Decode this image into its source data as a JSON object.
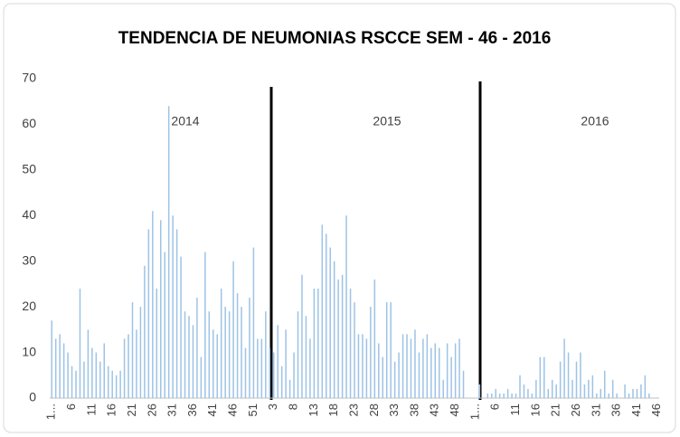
{
  "chart_data": {
    "type": "bar",
    "title": "TENDENCIA DE NEUMONIAS  RSCCE SEM - 46 - 2016",
    "annotations": [
      "2014",
      "2015",
      "2016"
    ],
    "categories": [
      "1...",
      null,
      null,
      null,
      null,
      "6",
      null,
      null,
      null,
      null,
      "11",
      null,
      null,
      null,
      null,
      "16",
      null,
      null,
      null,
      null,
      "21",
      null,
      null,
      null,
      null,
      "26",
      null,
      null,
      null,
      null,
      "31",
      null,
      null,
      null,
      null,
      "36",
      null,
      null,
      null,
      null,
      "41",
      null,
      null,
      null,
      null,
      "46",
      null,
      null,
      null,
      null,
      "51",
      null,
      null,
      null,
      null,
      "3",
      null,
      null,
      null,
      null,
      "8",
      null,
      null,
      null,
      null,
      "13",
      null,
      null,
      null,
      null,
      "18",
      null,
      null,
      null,
      null,
      "23",
      null,
      null,
      null,
      null,
      "28",
      null,
      null,
      null,
      null,
      "33",
      null,
      null,
      null,
      null,
      "38",
      null,
      null,
      null,
      null,
      "43",
      null,
      null,
      null,
      null,
      "48",
      null,
      null,
      null,
      null,
      "1...",
      null,
      null,
      null,
      null,
      "6",
      null,
      null,
      null,
      null,
      "11",
      null,
      null,
      null,
      null,
      "16",
      null,
      null,
      null,
      null,
      "21",
      null,
      null,
      null,
      null,
      "26",
      null,
      null,
      null,
      null,
      "31",
      null,
      null,
      null,
      null,
      "36",
      null,
      null,
      null,
      null,
      "41",
      null,
      null,
      null,
      null,
      "46"
    ],
    "values": [
      17,
      13,
      14,
      12,
      10,
      7,
      6,
      24,
      8,
      15,
      11,
      10,
      8,
      12,
      7,
      6,
      5,
      6,
      13,
      14,
      21,
      15,
      20,
      29,
      37,
      41,
      24,
      39,
      32,
      64,
      40,
      37,
      31,
      19,
      18,
      16,
      22,
      9,
      32,
      19,
      15,
      14,
      24,
      20,
      19,
      30,
      23,
      20,
      11,
      22,
      33,
      13,
      13,
      19,
      11,
      10,
      16,
      7,
      15,
      4,
      10,
      19,
      27,
      18,
      13,
      24,
      24,
      38,
      36,
      33,
      30,
      26,
      27,
      40,
      24,
      21,
      14,
      14,
      13,
      20,
      26,
      12,
      9,
      21,
      21,
      8,
      10,
      14,
      14,
      13,
      15,
      10,
      13,
      14,
      11,
      12,
      11,
      4,
      12,
      9,
      12,
      13,
      6,
      0,
      0,
      0,
      3,
      0,
      1,
      1,
      2,
      1,
      1,
      2,
      1,
      1,
      5,
      3,
      2,
      1,
      4,
      9,
      9,
      2,
      4,
      3,
      8,
      13,
      10,
      4,
      8,
      10,
      3,
      4,
      5,
      1,
      2,
      6,
      1,
      4,
      1,
      0,
      3,
      1,
      2,
      2,
      3,
      5,
      1,
      0,
      0
    ],
    "color": "#9dc3e6",
    "ylim": [
      0,
      70
    ],
    "yticks": [
      0,
      10,
      20,
      30,
      40,
      50,
      60,
      70
    ],
    "grid": false
  }
}
